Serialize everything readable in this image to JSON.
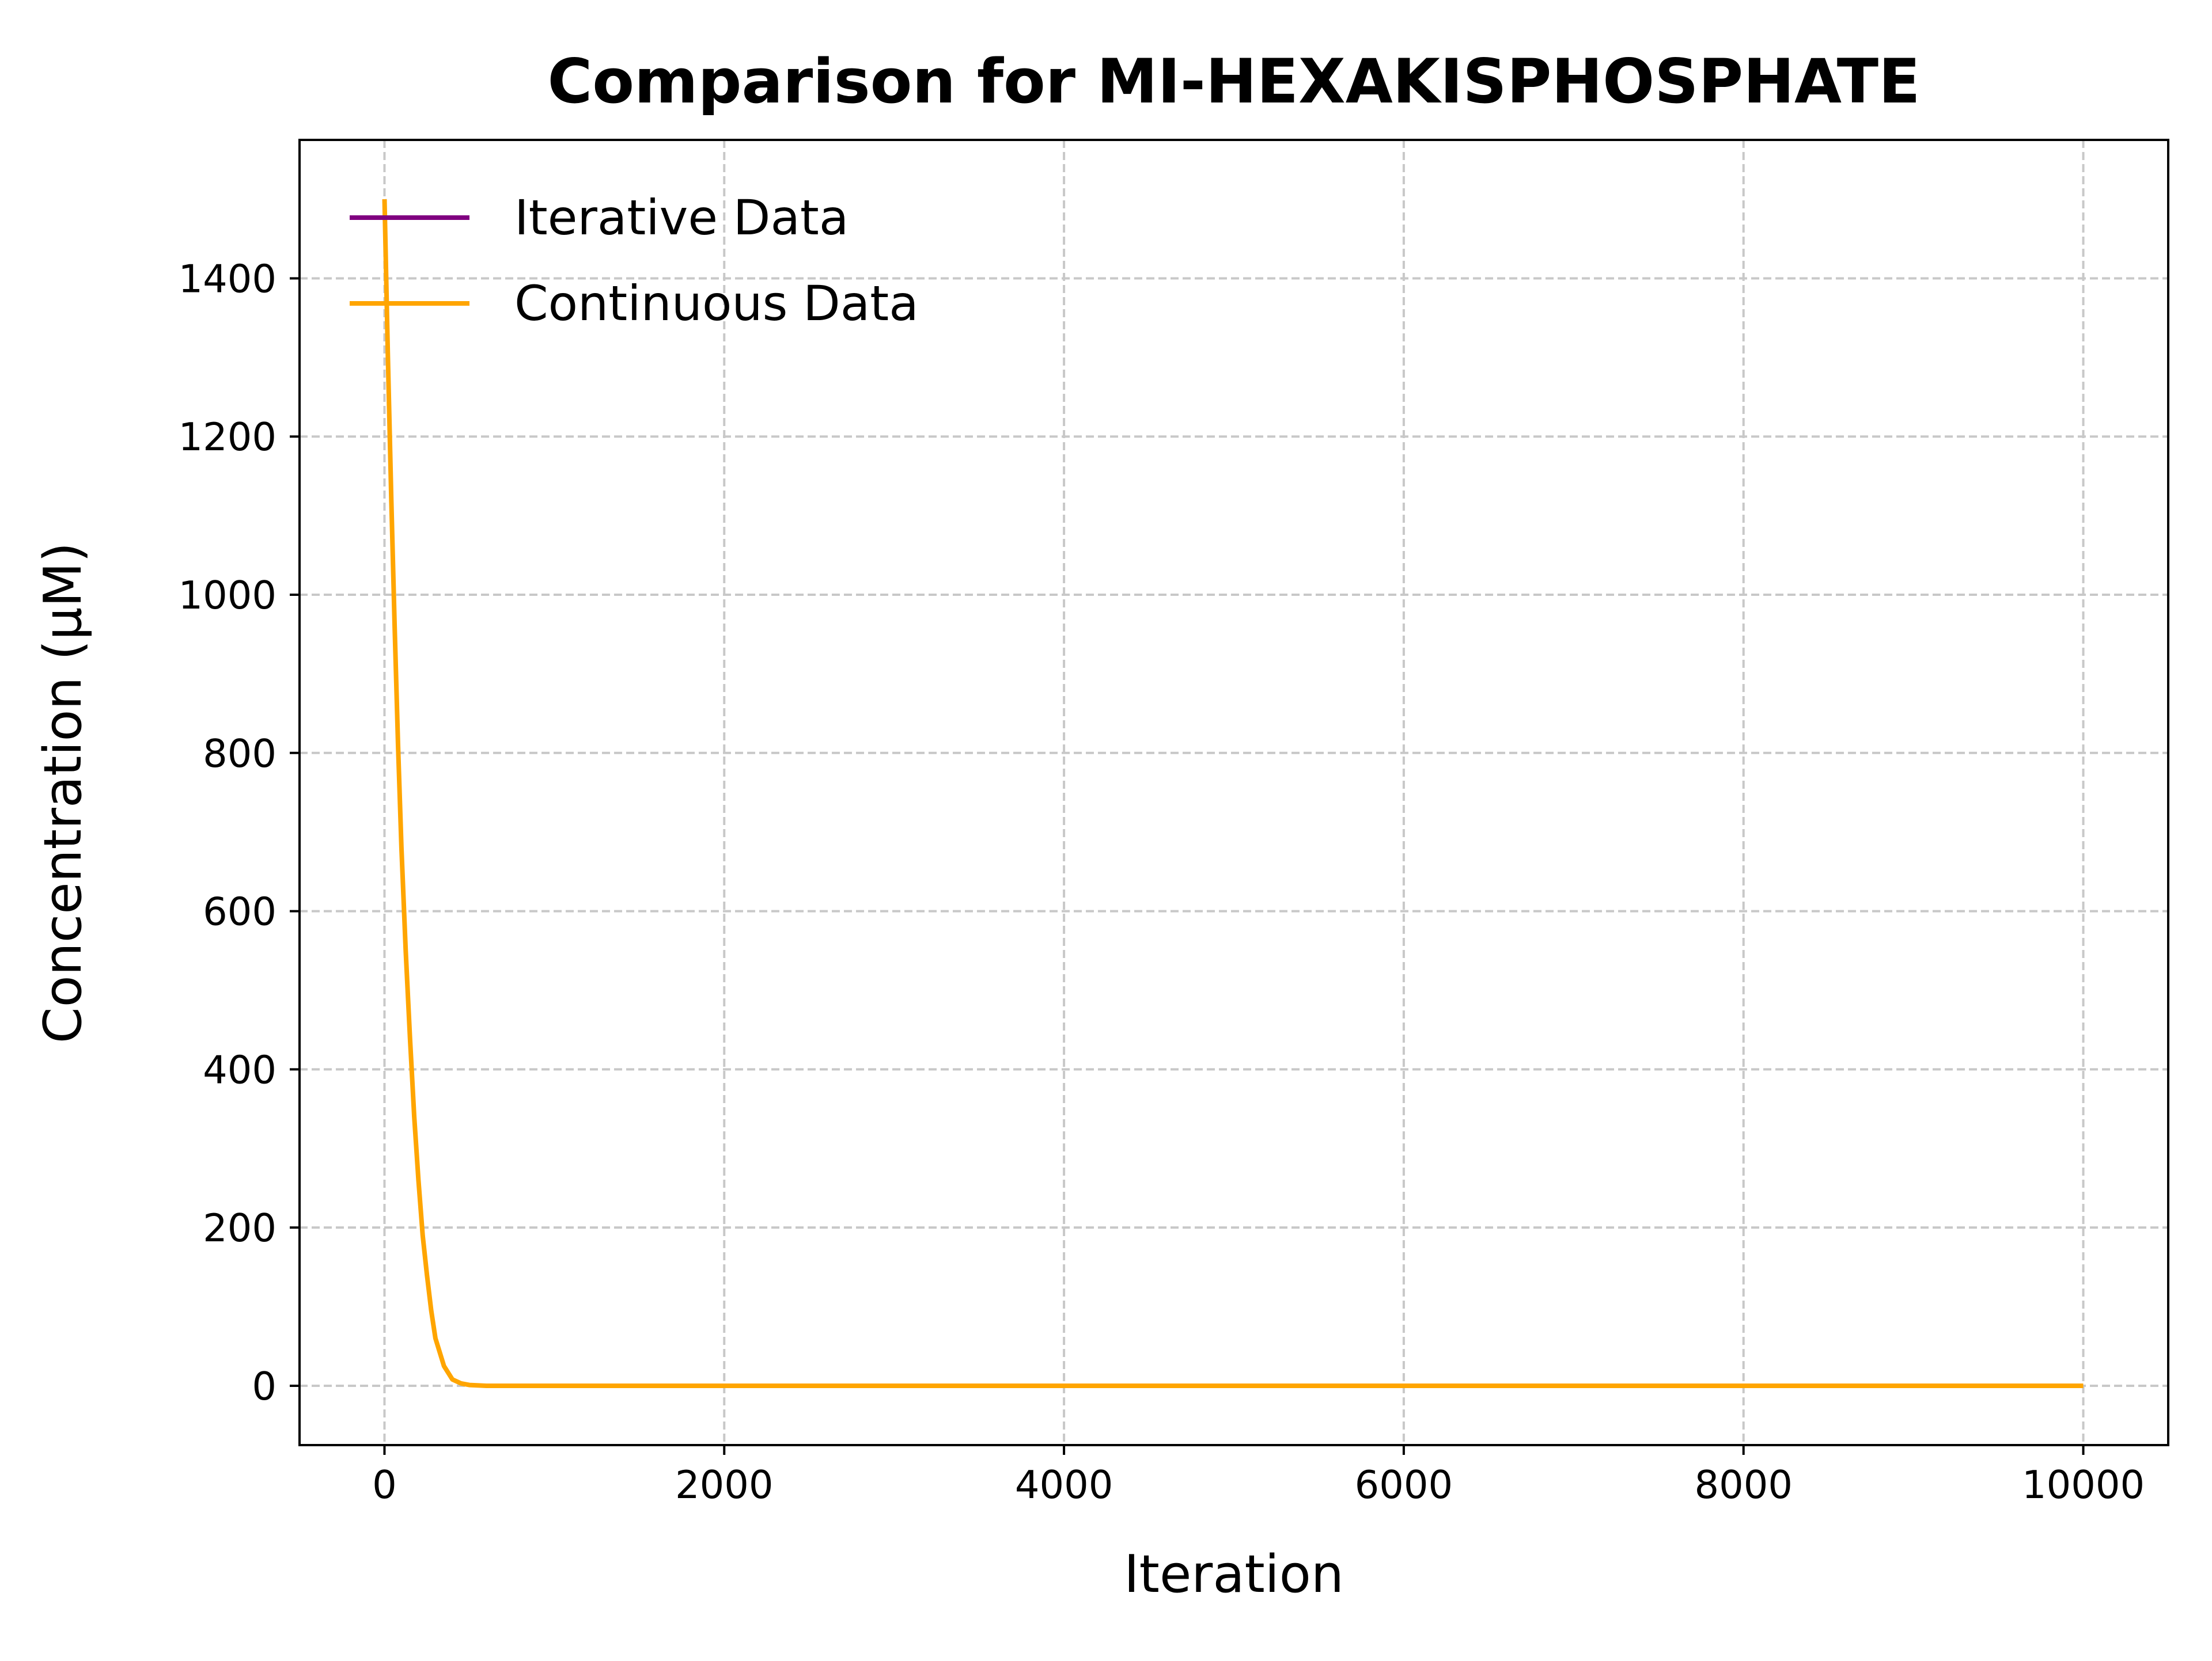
{
  "chart_data": {
    "type": "line",
    "title": "Comparison for MI-HEXAKISPHOSPHATE",
    "xlabel": "Iteration",
    "ylabel": "Concentration (μM)",
    "xlim": [
      -500,
      10500
    ],
    "ylim": [
      -75,
      1575
    ],
    "xticks": [
      0,
      2000,
      4000,
      6000,
      8000,
      10000
    ],
    "yticks": [
      0,
      200,
      400,
      600,
      800,
      1000,
      1200,
      1400
    ],
    "grid": true,
    "legend_position": "upper-left",
    "series": [
      {
        "name": "Iterative Data",
        "color": "#800080",
        "x": [
          0,
          20,
          40,
          60,
          80,
          100,
          125,
          150,
          175,
          200,
          225,
          250,
          275,
          300,
          350,
          400,
          450,
          500,
          600,
          800,
          1000,
          2000,
          4000,
          6000,
          8000,
          10000
        ],
        "y": [
          1500,
          1300,
          1120,
          960,
          810,
          680,
          550,
          440,
          340,
          260,
          190,
          140,
          95,
          60,
          25,
          8,
          3,
          1,
          0,
          0,
          0,
          0,
          0,
          0,
          0,
          0
        ]
      },
      {
        "name": "Continuous Data",
        "color": "#ffa500",
        "x": [
          0,
          20,
          40,
          60,
          80,
          100,
          125,
          150,
          175,
          200,
          225,
          250,
          275,
          300,
          350,
          400,
          450,
          500,
          600,
          800,
          1000,
          2000,
          4000,
          6000,
          8000,
          10000
        ],
        "y": [
          1500,
          1300,
          1120,
          960,
          810,
          680,
          550,
          440,
          340,
          260,
          190,
          140,
          95,
          60,
          25,
          8,
          3,
          1,
          0,
          0,
          0,
          0,
          0,
          0,
          0,
          0
        ]
      }
    ]
  }
}
